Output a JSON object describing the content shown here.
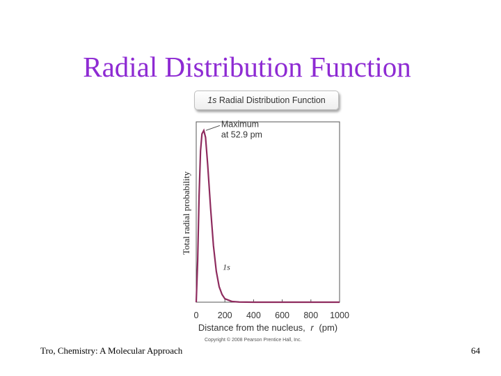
{
  "slide": {
    "title": "Radial Distribution Function",
    "footer_left": "Tro, Chemistry: A Molecular Approach",
    "page_number": "64",
    "copyright": "Copyright © 2008 Pearson Prentice Hall, Inc."
  },
  "chart_data": {
    "type": "line",
    "title_prefix": "1s",
    "title": "Radial Distribution Function",
    "xlabel_prefix": "Distance from the nucleus,",
    "xlabel_var": "r",
    "xlabel_unit": "(pm)",
    "ylabel": "Total radial probability",
    "xlim": [
      0,
      1000
    ],
    "ylim": [
      0,
      1.05
    ],
    "xticks": [
      0,
      200,
      400,
      600,
      800,
      1000
    ],
    "grid": false,
    "series": [
      {
        "name": "1s",
        "color": "#8e2b5e",
        "x": [
          0,
          10,
          20,
          30,
          40,
          52.9,
          65,
          80,
          100,
          120,
          140,
          160,
          180,
          200,
          250,
          300,
          400,
          500,
          600,
          800,
          1000
        ],
        "y": [
          0,
          0.24,
          0.62,
          0.88,
          0.98,
          1.0,
          0.96,
          0.8,
          0.55,
          0.33,
          0.18,
          0.09,
          0.045,
          0.02,
          0.004,
          0.001,
          0,
          0,
          0,
          0,
          0
        ]
      }
    ],
    "annotations": [
      {
        "line1": "Maximum",
        "line2": "at 52.9 pm",
        "x": 52.9,
        "y": 1.0
      },
      {
        "text": "1s",
        "x": 185,
        "y": 0.14
      }
    ]
  }
}
